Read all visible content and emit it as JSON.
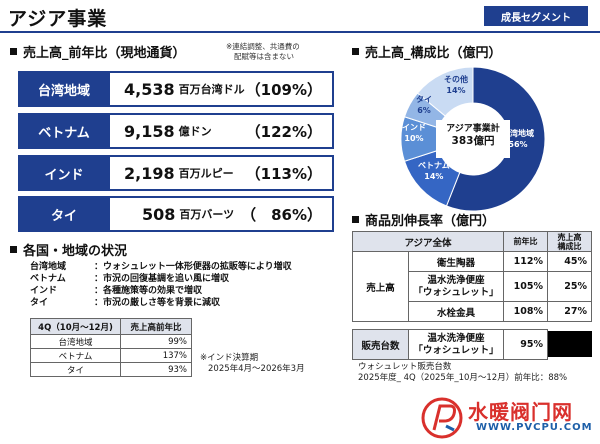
{
  "header": {
    "title": "アジア事業",
    "tag": "成長セグメント"
  },
  "revenue": {
    "heading": "売上高_前年比（現地通貨）",
    "note_line1": "※連結調整、共通費の",
    "note_line2": "配賦等は含まない",
    "rows": [
      {
        "label": "台湾地域",
        "value": "4,538",
        "unit": "百万台湾ドル",
        "pct": "（109%）"
      },
      {
        "label": "ベトナム",
        "value": "9,158",
        "unit": "億ドン",
        "pct": "（122%）"
      },
      {
        "label": "インド",
        "value": "2,198",
        "unit": "百万ルピー",
        "pct": "（113%）"
      },
      {
        "label": "タイ",
        "value": "508",
        "unit": "百万バーツ",
        "pct": "（　86%）"
      }
    ]
  },
  "composition": {
    "heading": "売上高_構成比（億円）",
    "center_line1": "アジア事業計",
    "center_line2": "383億円",
    "slices": [
      {
        "name": "台湾地域",
        "pct": "56%",
        "value": 56,
        "color": "#1f3f8f"
      },
      {
        "name": "ベトナム",
        "pct": "14%",
        "value": 14,
        "color": "#3566c4"
      },
      {
        "name": "インド",
        "pct": "10%",
        "value": 10,
        "color": "#5b8fd6"
      },
      {
        "name": "タイ",
        "pct": "6%",
        "value": 6,
        "color": "#93b6e6"
      },
      {
        "name": "その他",
        "pct": "14%",
        "value": 14,
        "color": "#c9dbf3"
      }
    ]
  },
  "status": {
    "heading": "各国・地域の状況",
    "rows": [
      {
        "key": "台湾地域",
        "text": "：ウォシュレット一体形便器の拡販等により増収"
      },
      {
        "key": "ベトナム",
        "text": "：市況の回復基調を追い風に増収"
      },
      {
        "key": "インド",
        "text": "：各種施策等の効果で増収"
      },
      {
        "key": "タイ",
        "text": "：市況の厳しさ等を背景に減収"
      }
    ]
  },
  "q4": {
    "header_col1": "4Q（10月～12月)",
    "header_col2": "売上高前年比",
    "rows": [
      {
        "name": "台湾地域",
        "value": "99%"
      },
      {
        "name": "ベトナム",
        "value": "137%"
      },
      {
        "name": "タイ",
        "value": "93%"
      }
    ],
    "india_note_line1": "※インド決算期",
    "india_note_line2": "2025年4月～2026年3月"
  },
  "products": {
    "heading": "商品別伸長率（億円）",
    "header_all": "アジア全体",
    "header_yoy": "前年比",
    "header_share_line1": "売上高",
    "header_share_line2": "構成比",
    "sales_group": "売上高",
    "rows": [
      {
        "name": "衛生陶器",
        "yoy": "112%",
        "share": "45%"
      },
      {
        "name_line1": "温水洗浄便座",
        "name_line2": "「ウォシュレット」",
        "yoy": "105%",
        "share": "25%"
      },
      {
        "name": "水栓金具",
        "yoy": "108%",
        "share": "27%"
      }
    ],
    "units_group": "販売台数",
    "units_row": {
      "name_line1": "温水洗浄便座",
      "name_line2": "「ウォシュレット」",
      "yoy": "95%"
    },
    "footnote_line1": "ウォシュレット販売台数",
    "footnote_line2": "2025年度_ 4Q（2025年_10月～12月）前年比：88%"
  },
  "watermark": {
    "cn": "水暖阀门网",
    "url": "WWW.PVCPU.COM"
  }
}
